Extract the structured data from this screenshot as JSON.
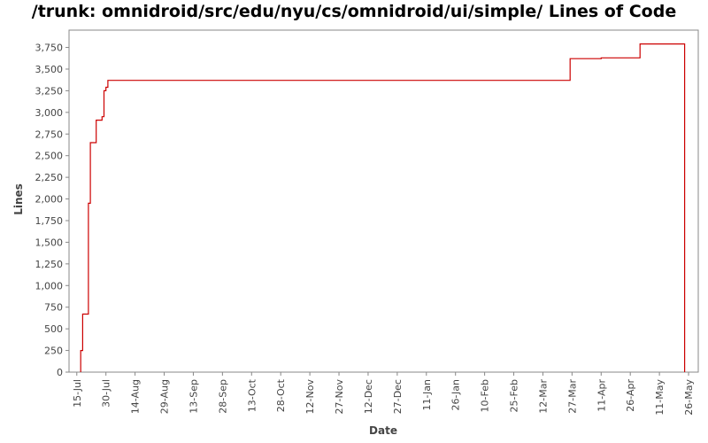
{
  "chart_data": {
    "type": "line",
    "title": "/trunk: omnidroid/src/edu/nyu/cs/omnidroid/ui/simple/ Lines of Code",
    "xlabel": "Date",
    "ylabel": "Lines",
    "ylim": [
      0,
      3950
    ],
    "xlim": [
      "2008-07-11",
      "2009-05-31"
    ],
    "y_ticks": [
      0,
      250,
      500,
      750,
      1000,
      1250,
      1500,
      1750,
      2000,
      2250,
      2500,
      2750,
      3000,
      3250,
      3500,
      3750
    ],
    "y_tick_labels": [
      "0",
      "250",
      "500",
      "750",
      "1,000",
      "1,250",
      "1,500",
      "1,750",
      "2,000",
      "2,250",
      "2,500",
      "2,750",
      "3,000",
      "3,250",
      "3,500",
      "3,750"
    ],
    "x_ticks": [
      "2008-07-15",
      "2008-07-30",
      "2008-08-14",
      "2008-08-29",
      "2008-09-13",
      "2008-09-28",
      "2008-10-13",
      "2008-10-28",
      "2008-11-12",
      "2008-11-27",
      "2008-12-12",
      "2008-12-27",
      "2009-01-11",
      "2009-01-26",
      "2009-02-10",
      "2009-02-25",
      "2009-03-12",
      "2009-03-27",
      "2009-04-11",
      "2009-04-26",
      "2009-05-11",
      "2009-05-26"
    ],
    "x_tick_labels": [
      "15-Jul",
      "30-Jul",
      "14-Aug",
      "29-Aug",
      "13-Sep",
      "28-Sep",
      "13-Oct",
      "28-Oct",
      "12-Nov",
      "27-Nov",
      "12-Dec",
      "27-Dec",
      "11-Jan",
      "26-Jan",
      "10-Feb",
      "25-Feb",
      "12-Mar",
      "27-Mar",
      "11-Apr",
      "26-Apr",
      "11-May",
      "26-May"
    ],
    "grid": false,
    "legend": "none",
    "series": [
      {
        "color": "#cc0000",
        "step": true,
        "points": [
          [
            "2008-07-17",
            0
          ],
          [
            "2008-07-17",
            250
          ],
          [
            "2008-07-18",
            250
          ],
          [
            "2008-07-18",
            670
          ],
          [
            "2008-07-21",
            670
          ],
          [
            "2008-07-21",
            1950
          ],
          [
            "2008-07-22",
            1950
          ],
          [
            "2008-07-22",
            2650
          ],
          [
            "2008-07-25",
            2650
          ],
          [
            "2008-07-25",
            2910
          ],
          [
            "2008-07-28",
            2910
          ],
          [
            "2008-07-28",
            2950
          ],
          [
            "2008-07-29",
            2950
          ],
          [
            "2008-07-29",
            3250
          ],
          [
            "2008-07-30",
            3250
          ],
          [
            "2008-07-30",
            3290
          ],
          [
            "2008-07-31",
            3290
          ],
          [
            "2008-07-31",
            3370
          ],
          [
            "2009-03-26",
            3370
          ],
          [
            "2009-03-26",
            3620
          ],
          [
            "2009-04-11",
            3620
          ],
          [
            "2009-04-11",
            3630
          ],
          [
            "2009-05-01",
            3630
          ],
          [
            "2009-05-01",
            3790
          ],
          [
            "2009-05-24",
            3790
          ],
          [
            "2009-05-24",
            0
          ]
        ]
      }
    ]
  }
}
